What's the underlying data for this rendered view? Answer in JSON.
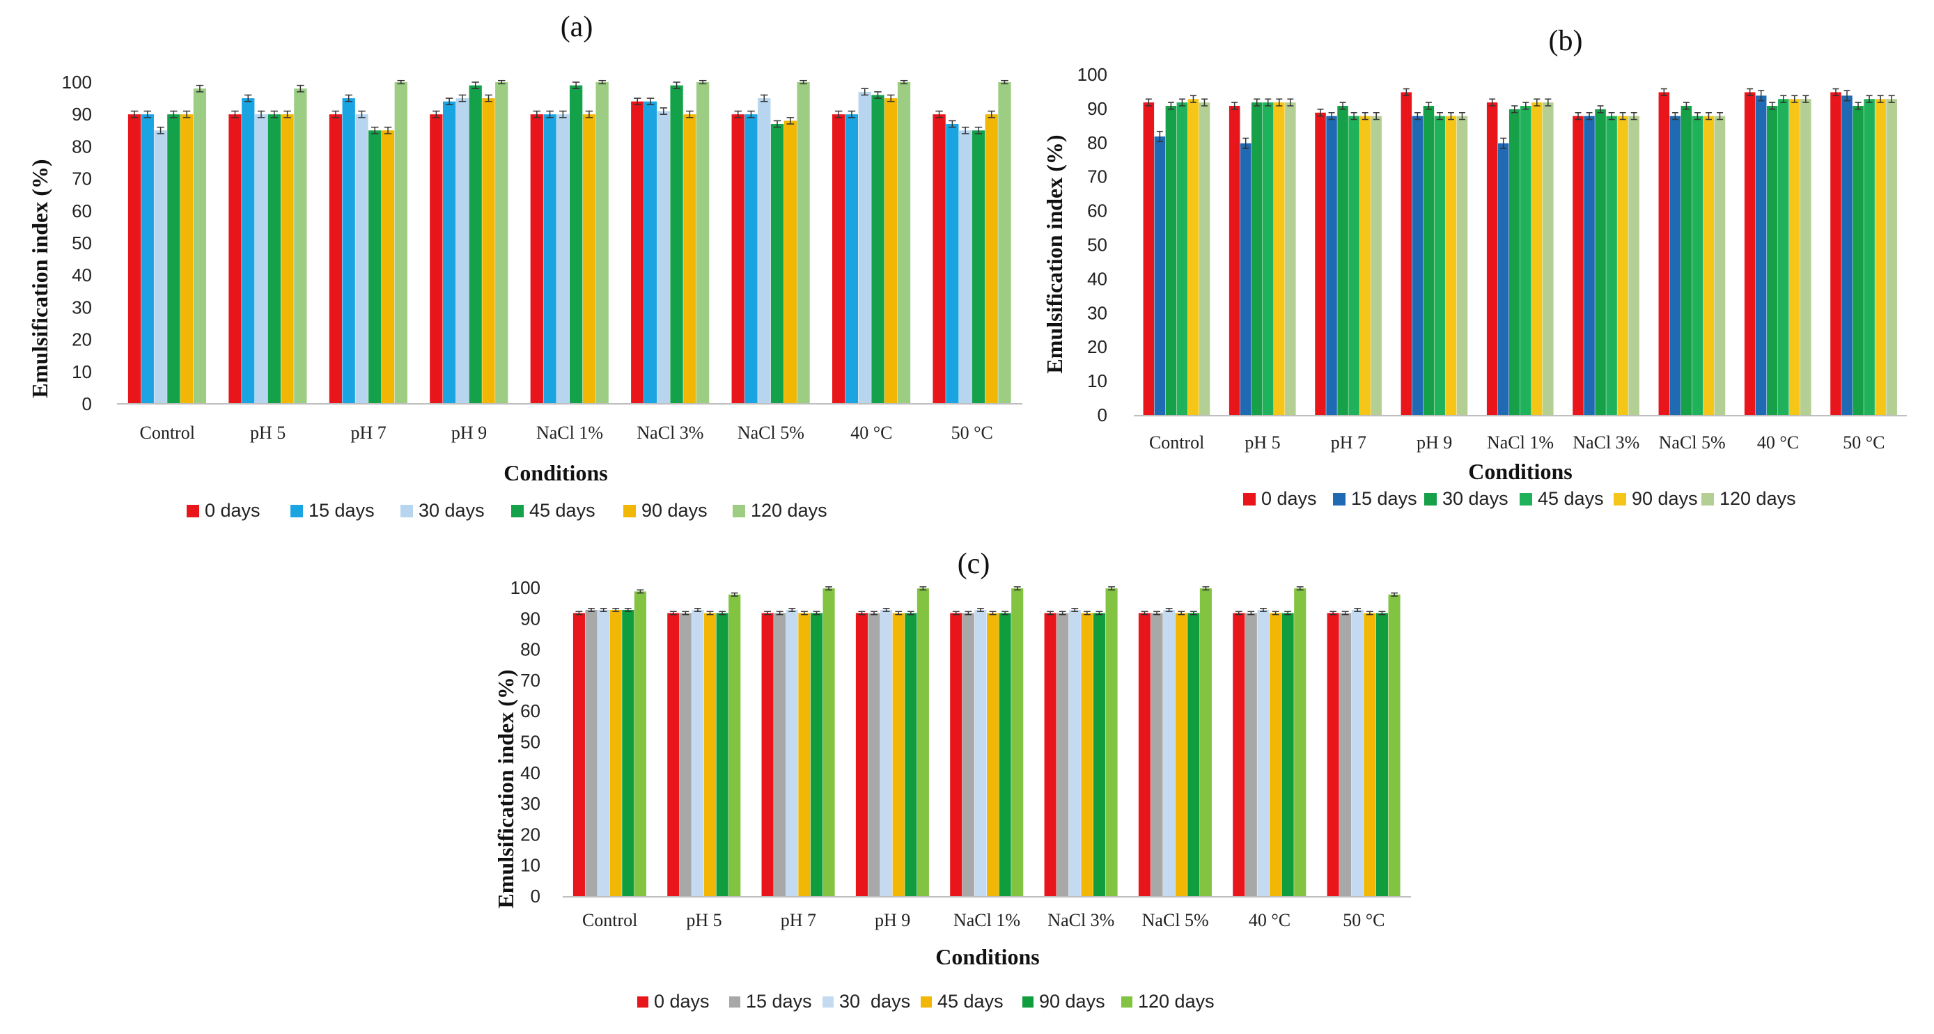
{
  "figure": {
    "panels": [
      "a",
      "b",
      "c"
    ]
  },
  "chart_data": [
    {
      "panel": "(a)",
      "type": "bar",
      "xlabel": "Conditions",
      "ylabel": "Emulsification index (%)",
      "ylim": [
        0,
        100
      ],
      "yticks": [
        0,
        10,
        20,
        30,
        40,
        50,
        60,
        70,
        80,
        90,
        100
      ],
      "categories": [
        "Control",
        "pH 5",
        "pH 7",
        "pH 9",
        "NaCl 1%",
        "NaCl 3%",
        "NaCl 5%",
        "40 °C",
        "50 °C"
      ],
      "legend_position": "bottom",
      "series": [
        {
          "name": "0 days",
          "color": "#e8151b",
          "values": [
            90,
            90,
            90,
            90,
            90,
            94,
            90,
            90,
            90
          ],
          "errors": [
            1,
            1,
            1,
            1,
            1,
            1,
            1,
            1,
            1
          ]
        },
        {
          "name": "15 days",
          "color": "#1aa4e2",
          "values": [
            90,
            95,
            95,
            94,
            90,
            94,
            90,
            90,
            87
          ],
          "errors": [
            1,
            1,
            1,
            1,
            1,
            1,
            1,
            1,
            1
          ]
        },
        {
          "name": "30 days",
          "color": "#b7d5ee",
          "values": [
            85,
            90,
            90,
            95,
            90,
            91,
            95,
            97,
            85
          ],
          "errors": [
            1,
            1,
            1,
            1,
            1,
            1,
            1,
            1,
            1
          ]
        },
        {
          "name": "45 days",
          "color": "#13a24a",
          "values": [
            90,
            90,
            85,
            99,
            99,
            99,
            87,
            96,
            85
          ],
          "errors": [
            1,
            1,
            1,
            1,
            1,
            1,
            1,
            1,
            1
          ]
        },
        {
          "name": "90 days",
          "color": "#f2b705",
          "values": [
            90,
            90,
            85,
            95,
            90,
            90,
            88,
            95,
            90
          ],
          "errors": [
            1,
            1,
            1,
            1,
            1,
            1,
            1,
            1,
            1
          ]
        },
        {
          "name": "120 days",
          "color": "#9ccd82",
          "values": [
            98,
            98,
            100,
            100,
            100,
            100,
            100,
            100,
            100
          ],
          "errors": [
            1,
            1,
            0.5,
            0.5,
            0.5,
            0.5,
            0.5,
            0.5,
            0.5
          ]
        }
      ]
    },
    {
      "panel": "(b)",
      "type": "bar",
      "xlabel": "Conditions",
      "ylabel": "Emulsification index (%)",
      "ylim": [
        0,
        100
      ],
      "yticks": [
        0,
        10,
        20,
        30,
        40,
        50,
        60,
        70,
        80,
        90,
        100
      ],
      "categories": [
        "Control",
        "pH 5",
        "pH 7",
        "pH 9",
        "NaCl 1%",
        "NaCl 3%",
        "NaCl 5%",
        "40 °C",
        "50 °C"
      ],
      "legend_position": "bottom",
      "series": [
        {
          "name": "0 days",
          "color": "#e8151b",
          "values": [
            92,
            91,
            89,
            95,
            92,
            88,
            95,
            95,
            95
          ],
          "errors": [
            1,
            1,
            1,
            1,
            1,
            1,
            1,
            1,
            1
          ]
        },
        {
          "name": "15 days",
          "color": "#1f6ab3",
          "values": [
            82,
            80,
            88,
            88,
            80,
            88,
            88,
            94,
            94
          ],
          "errors": [
            1.5,
            1.5,
            1,
            1,
            1.5,
            1,
            1,
            1.5,
            1.5
          ]
        },
        {
          "name": "30 days",
          "color": "#16a149",
          "values": [
            91,
            92,
            91,
            91,
            90,
            90,
            91,
            91,
            91
          ],
          "errors": [
            1,
            1,
            1,
            1,
            1,
            1,
            1,
            1,
            1
          ]
        },
        {
          "name": "45 days",
          "color": "#20b25a",
          "values": [
            92,
            92,
            88,
            88,
            91,
            88,
            88,
            93,
            93
          ],
          "errors": [
            1,
            1,
            1,
            1,
            1,
            1,
            1,
            1,
            1
          ]
        },
        {
          "name": "90 days",
          "color": "#f5c518",
          "values": [
            93,
            92,
            88,
            88,
            92,
            88,
            88,
            93,
            93
          ],
          "errors": [
            1,
            1,
            1,
            1,
            1,
            1,
            1,
            1,
            1
          ]
        },
        {
          "name": "120 days",
          "color": "#b3cf93",
          "values": [
            92,
            92,
            88,
            88,
            92,
            88,
            88,
            93,
            93
          ],
          "errors": [
            1,
            1,
            1,
            1,
            1,
            1,
            1,
            1,
            1
          ]
        }
      ]
    },
    {
      "panel": "(c)",
      "type": "bar",
      "xlabel": "Conditions",
      "ylabel": "Emulsification index (%)",
      "ylim": [
        0,
        100
      ],
      "yticks": [
        0,
        10,
        20,
        30,
        40,
        50,
        60,
        70,
        80,
        90,
        100
      ],
      "categories": [
        "Control",
        "pH 5",
        "pH 7",
        "pH 9",
        "NaCl 1%",
        "NaCl 3%",
        "NaCl 5%",
        "40 °C",
        "50 °C"
      ],
      "legend_position": "bottom",
      "series": [
        {
          "name": "0 days",
          "color": "#e8151b",
          "values": [
            92,
            92,
            92,
            92,
            92,
            92,
            92,
            92,
            92
          ],
          "errors": [
            0.5,
            0.5,
            0.5,
            0.5,
            0.5,
            0.5,
            0.5,
            0.5,
            0.5
          ]
        },
        {
          "name": "15 days",
          "color": "#a8a8a8",
          "values": [
            93,
            92,
            92,
            92,
            92,
            92,
            92,
            92,
            92
          ],
          "errors": [
            0.5,
            0.5,
            0.5,
            0.5,
            0.5,
            0.5,
            0.5,
            0.5,
            0.5
          ]
        },
        {
          "name": "30  days",
          "color": "#c4daf0",
          "values": [
            93,
            93,
            93,
            93,
            93,
            93,
            93,
            93,
            93
          ],
          "errors": [
            0.5,
            0.5,
            0.5,
            0.5,
            0.5,
            0.5,
            0.5,
            0.5,
            0.5
          ]
        },
        {
          "name": "45 days",
          "color": "#f2b705",
          "values": [
            93,
            92,
            92,
            92,
            92,
            92,
            92,
            92,
            92
          ],
          "errors": [
            0.5,
            0.5,
            0.5,
            0.5,
            0.5,
            0.5,
            0.5,
            0.5,
            0.5
          ]
        },
        {
          "name": "90 days",
          "color": "#0f9d3e",
          "values": [
            93,
            92,
            92,
            92,
            92,
            92,
            92,
            92,
            92
          ],
          "errors": [
            0.5,
            0.5,
            0.5,
            0.5,
            0.5,
            0.5,
            0.5,
            0.5,
            0.5
          ]
        },
        {
          "name": "120 days",
          "color": "#82c341",
          "values": [
            99,
            98,
            100,
            100,
            100,
            100,
            100,
            100,
            98
          ],
          "errors": [
            0.5,
            0.5,
            0.5,
            0.5,
            0.5,
            0.5,
            0.5,
            0.5,
            0.5
          ]
        }
      ]
    }
  ]
}
